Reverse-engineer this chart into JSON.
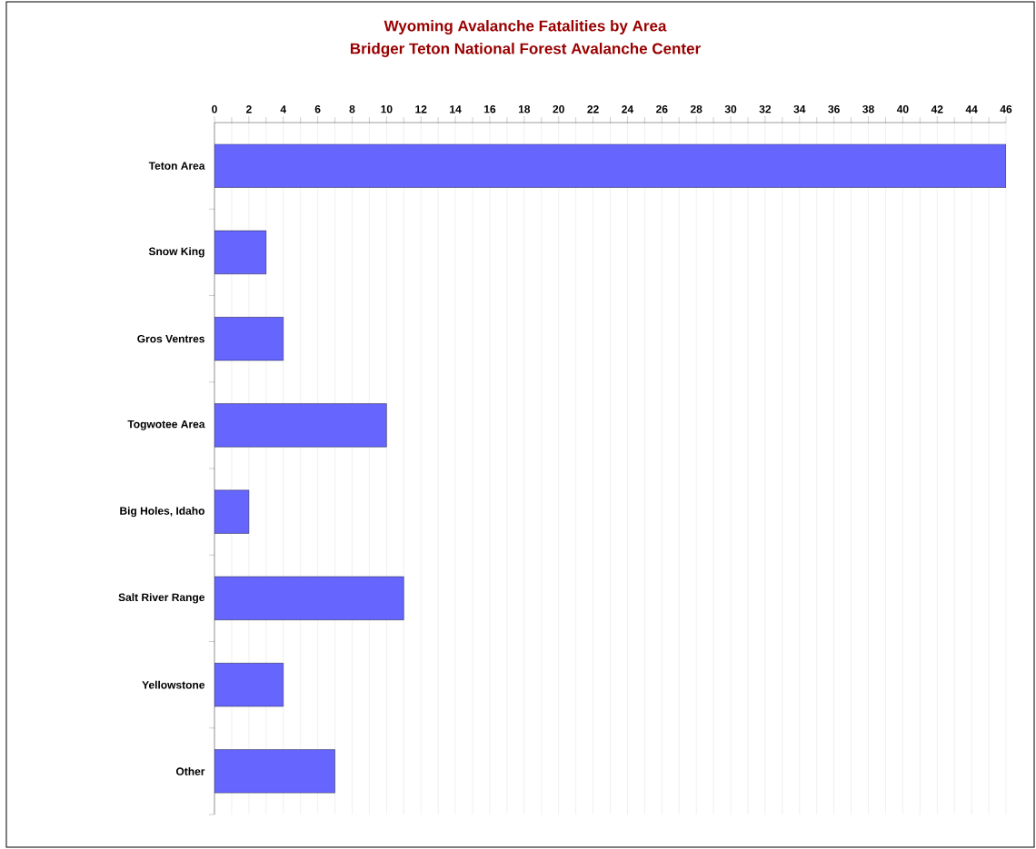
{
  "chart_data": {
    "type": "bar",
    "orientation": "horizontal",
    "title": "Wyoming Avalanche Fatalities by Area",
    "subtitle": "Bridger Teton National Forest Avalanche Center",
    "categories": [
      "Teton Area",
      "Snow King",
      "Gros Ventres",
      "Togwotee Area",
      "Big Holes, Idaho",
      "Salt River Range",
      "Yellowstone",
      "Other"
    ],
    "values": [
      46,
      3,
      4,
      10,
      2,
      11,
      4,
      7
    ],
    "color": "#6666ff",
    "xlim": [
      0,
      46
    ],
    "xticks": [
      0,
      2,
      4,
      6,
      8,
      10,
      12,
      14,
      16,
      18,
      20,
      22,
      24,
      26,
      28,
      30,
      32,
      34,
      36,
      38,
      40,
      42,
      44,
      46
    ],
    "grid": "x"
  }
}
